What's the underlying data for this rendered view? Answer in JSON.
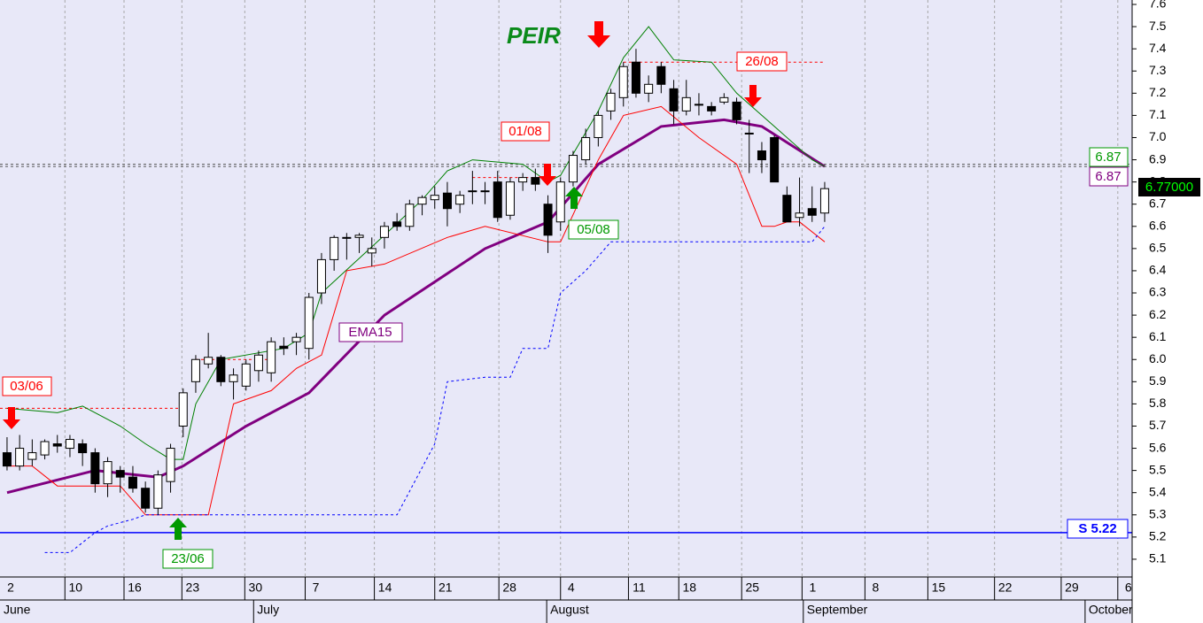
{
  "chart_data": {
    "type": "candlestick",
    "title": "PEIR",
    "ylim": [
      5.02,
      7.62
    ],
    "yticks": [
      5.1,
      5.2,
      5.3,
      5.4,
      5.5,
      5.6,
      5.7,
      5.8,
      5.9,
      {
        "value": 6,
        "label": "6.0"
      },
      6.1,
      6.2,
      6.3,
      6.4,
      6.5,
      6.6,
      6.7,
      6.8,
      6.9,
      {
        "value": 7,
        "label": "7.0"
      },
      7.1,
      7.2,
      7.3,
      7.4,
      7.5,
      7.6
    ],
    "xlim": [
      -0.56,
      89.44
    ],
    "xticks": [
      {
        "value": -0.9,
        "label": "2"
      },
      {
        "value": 4.6,
        "label": "10"
      },
      {
        "value": 9.3,
        "label": "16"
      },
      {
        "value": 13.9,
        "label": "23"
      },
      {
        "value": 18.9,
        "label": "30"
      },
      {
        "value": 23.7,
        "label": "7"
      },
      {
        "value": 29.2,
        "label": "14"
      },
      {
        "value": 34,
        "label": "21"
      },
      {
        "value": 39.1,
        "label": "28"
      },
      {
        "value": 44,
        "label": "4"
      },
      {
        "value": 49.4,
        "label": "11"
      },
      {
        "value": 53.4,
        "label": "18"
      },
      {
        "value": 58.4,
        "label": "25"
      },
      {
        "value": 63.2,
        "label": "1"
      },
      {
        "value": 68.2,
        "label": "8"
      },
      {
        "value": 73.2,
        "label": "15"
      },
      {
        "value": 78.5,
        "label": "22"
      },
      {
        "value": 83.8,
        "label": "29"
      },
      {
        "value": 88.3,
        "label": "6"
      }
    ],
    "months": [
      {
        "value": -0.56,
        "label": "June"
      },
      {
        "value": 19.6,
        "label": "July"
      },
      {
        "value": 42.9,
        "label": "August"
      },
      {
        "value": 63.3,
        "label": "September"
      },
      {
        "value": 85.7,
        "label": "October"
      }
    ],
    "grid": true,
    "open": [
      5.58,
      5.52,
      5.55,
      5.57,
      5.62,
      5.6,
      5.62,
      5.58,
      5.44,
      5.5,
      5.47,
      5.42,
      5.33,
      5.45,
      5.7,
      5.9,
      5.98,
      6.01,
      5.9,
      5.88,
      5.95,
      5.94,
      6.06,
      6.08,
      6.05,
      6.3,
      6.45,
      6.55,
      6.55,
      6.48,
      6.55,
      6.62,
      6.6,
      6.7,
      6.72,
      6.75,
      6.7,
      6.76,
      6.76,
      6.8,
      6.65,
      6.8,
      6.82,
      6.7,
      6.62,
      6.8,
      6.9,
      7.0,
      7.12,
      7.18,
      7.34,
      7.2,
      7.32,
      7.22,
      7.12,
      7.15,
      7.14,
      7.16,
      7.16,
      7.02,
      6.94,
      7.0,
      6.74,
      6.64,
      6.68,
      6.66
    ],
    "high": [
      5.65,
      5.66,
      5.64,
      5.64,
      5.66,
      5.66,
      5.64,
      5.6,
      5.56,
      5.52,
      5.52,
      5.45,
      5.5,
      5.62,
      5.87,
      6.02,
      6.12,
      6.02,
      5.96,
      6.0,
      6.04,
      6.1,
      6.1,
      6.12,
      6.3,
      6.48,
      6.56,
      6.57,
      6.57,
      6.55,
      6.62,
      6.66,
      6.72,
      6.74,
      6.78,
      6.8,
      6.76,
      6.85,
      6.8,
      6.85,
      6.82,
      6.84,
      6.86,
      6.74,
      6.82,
      6.94,
      7.04,
      7.12,
      7.22,
      7.34,
      7.4,
      7.28,
      7.34,
      7.26,
      7.26,
      7.2,
      7.16,
      7.2,
      7.18,
      7.08,
      6.98,
      7.01,
      6.78,
      6.82,
      6.78,
      6.8
    ],
    "low": [
      5.5,
      5.5,
      5.52,
      5.55,
      5.58,
      5.56,
      5.52,
      5.4,
      5.38,
      5.4,
      5.4,
      5.31,
      5.3,
      5.4,
      5.65,
      5.85,
      5.96,
      5.88,
      5.82,
      5.86,
      5.9,
      5.9,
      6.02,
      6.02,
      6.0,
      6.25,
      6.4,
      6.45,
      6.48,
      6.42,
      6.5,
      6.58,
      6.58,
      6.65,
      6.68,
      6.6,
      6.66,
      6.7,
      6.7,
      6.62,
      6.63,
      6.76,
      6.76,
      6.48,
      6.58,
      6.78,
      6.88,
      6.96,
      7.08,
      7.14,
      7.18,
      7.16,
      7.2,
      7.06,
      7.1,
      7.1,
      7.1,
      7.15,
      7.06,
      6.84,
      6.84,
      6.8,
      6.62,
      6.6,
      6.62,
      6.62
    ],
    "close": [
      5.52,
      5.6,
      5.58,
      5.63,
      5.61,
      5.64,
      5.58,
      5.44,
      5.54,
      5.47,
      5.42,
      5.33,
      5.48,
      5.6,
      5.85,
      6.0,
      6.01,
      5.9,
      5.93,
      5.98,
      6.02,
      6.08,
      6.05,
      6.1,
      6.28,
      6.45,
      6.55,
      6.55,
      6.56,
      6.5,
      6.6,
      6.6,
      6.7,
      6.73,
      6.74,
      6.68,
      6.74,
      6.76,
      6.76,
      6.64,
      6.8,
      6.82,
      6.79,
      6.56,
      6.8,
      6.92,
      7.0,
      7.1,
      7.2,
      7.32,
      7.2,
      7.24,
      7.24,
      7.12,
      7.18,
      7.15,
      7.12,
      7.18,
      7.08,
      7.02,
      6.9,
      6.8,
      6.62,
      6.66,
      6.65,
      6.77
    ],
    "series": [
      {
        "name": "EMA15",
        "color": "#800080",
        "width": 3,
        "dash": false,
        "x": [
          0,
          7,
          12,
          14,
          19,
          24,
          30,
          38,
          43,
          47,
          52,
          57,
          60,
          65
        ],
        "values": [
          5.4,
          5.5,
          5.47,
          5.52,
          5.7,
          5.85,
          6.2,
          6.5,
          6.62,
          6.88,
          7.05,
          7.08,
          7.05,
          6.87
        ]
      },
      {
        "name": "Resistance",
        "color": "#008000",
        "width": 1,
        "dash": false,
        "x": [
          0,
          4,
          6,
          9,
          11,
          13,
          14,
          15,
          17,
          22,
          24,
          25,
          30,
          33,
          35,
          37,
          41,
          43,
          44,
          47,
          49,
          51,
          53,
          56,
          58,
          61,
          64,
          65
        ],
        "values": [
          5.78,
          5.76,
          5.79,
          5.7,
          5.62,
          5.55,
          5.55,
          5.8,
          6.0,
          6.05,
          6.12,
          6.3,
          6.56,
          6.72,
          6.85,
          6.9,
          6.88,
          6.8,
          6.83,
          7.12,
          7.36,
          7.5,
          7.35,
          7.34,
          7.2,
          7.05,
          6.9,
          6.87
        ]
      },
      {
        "name": "Support",
        "color": "#ff0000",
        "width": 1,
        "dash": false,
        "x": [
          0,
          2,
          4,
          9,
          11,
          12,
          14,
          16,
          18,
          21,
          23,
          25,
          27,
          30,
          35,
          38,
          43,
          44,
          47,
          49,
          52,
          55,
          58,
          60,
          61,
          62,
          63,
          65
        ],
        "values": [
          5.52,
          5.52,
          5.43,
          5.43,
          5.3,
          5.3,
          5.3,
          5.3,
          5.8,
          5.86,
          5.96,
          6.02,
          6.4,
          6.43,
          6.55,
          6.6,
          6.53,
          6.53,
          6.9,
          7.1,
          7.14,
          7.0,
          6.88,
          6.6,
          6.6,
          6.62,
          6.62,
          6.53
        ]
      },
      {
        "name": "Stop",
        "color": "#0000ff",
        "width": 1,
        "dash": true,
        "x": [
          3,
          5,
          7,
          8,
          10,
          11,
          13,
          16,
          21,
          31,
          34,
          35,
          38,
          40,
          41,
          43,
          44,
          46,
          48,
          49,
          64,
          65
        ],
        "values": [
          5.13,
          5.13,
          5.22,
          5.25,
          5.28,
          5.3,
          5.3,
          5.3,
          5.3,
          5.3,
          5.62,
          5.9,
          5.92,
          5.92,
          6.05,
          6.05,
          6.3,
          6.4,
          6.53,
          6.53,
          6.53,
          6.6
        ]
      }
    ],
    "levels": [
      {
        "x": [
          -0.56,
          14
        ],
        "value": 5.78,
        "color": "#ff0000"
      },
      {
        "x": [
          15,
          21
        ],
        "value": 6.0,
        "color": "#ff0000"
      },
      {
        "x": [
          37,
          43
        ],
        "value": 6.82,
        "color": "#ff0000"
      },
      {
        "x": [
          49,
          65
        ],
        "value": 7.34,
        "color": "#ff0000"
      },
      {
        "x": [
          -0.56,
          89.44
        ],
        "value": 6.87,
        "color": "#555555"
      },
      {
        "x": [
          -0.56,
          89.44
        ],
        "value": 6.88,
        "color": "#555555"
      }
    ],
    "support_line": {
      "value": 5.22,
      "label": "S 5.22",
      "color": "#0000ff"
    },
    "annotations": [
      "03/06",
      "23/06",
      "01/08",
      "05/08",
      "26/08",
      "EMA15"
    ],
    "right_labels": [
      "6.87",
      "6.87",
      "6.77000"
    ]
  }
}
